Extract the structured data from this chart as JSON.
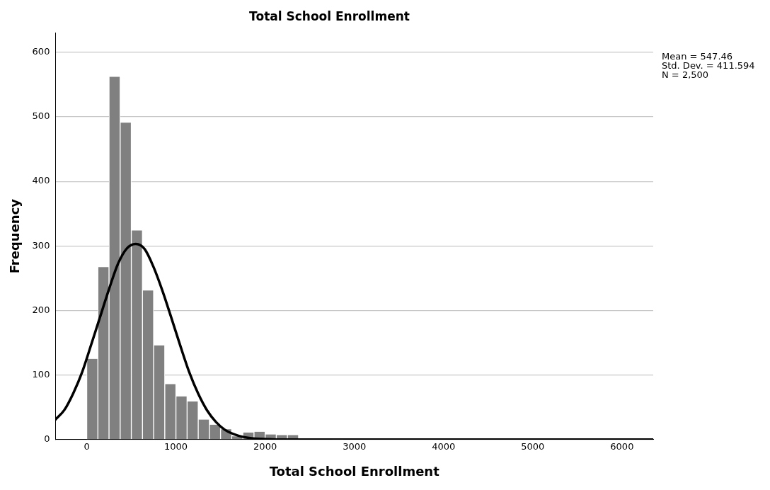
{
  "chart_data": {
    "type": "histogram",
    "title": "Total School Enrollment",
    "xlabel": "Total School Enrollment",
    "ylabel": "Frequency",
    "bins": [
      0,
      125,
      250,
      375,
      500,
      625,
      750,
      875,
      1000,
      1125,
      1250,
      1375,
      1500,
      1625,
      1750,
      1875,
      2000,
      2125,
      2250,
      2375,
      2500,
      2625,
      2750,
      2875
    ],
    "values": [
      125,
      267,
      562,
      491,
      324,
      231,
      146,
      86,
      67,
      59,
      31,
      23,
      16,
      5,
      11,
      12,
      8,
      7,
      7,
      0,
      0,
      0,
      1
    ],
    "color": "#808080",
    "series": [
      {
        "type": "line",
        "color": "#000000",
        "x": [
          -350,
          -250,
          -150,
          -50,
          50,
          150,
          250,
          350,
          450,
          550,
          650,
          750,
          850,
          950,
          1050,
          1150,
          1250,
          1350,
          1450,
          1550,
          1700,
          1850,
          2000,
          2200,
          3000,
          4000,
          5000,
          6000,
          6350
        ],
        "values": [
          31,
          46,
          72,
          105,
          147,
          190,
          233,
          272,
          296,
          303,
          295,
          267,
          230,
          188,
          145,
          104,
          71,
          45,
          27,
          15,
          6,
          2,
          1,
          0,
          0,
          0,
          0,
          0,
          0
        ]
      }
    ],
    "xlim": [
      -350,
      6350
    ],
    "xticks": [
      0,
      1000,
      2000,
      3000,
      4000,
      5000,
      6000
    ],
    "ylim": [
      0,
      630
    ],
    "yticks": [
      0,
      100,
      200,
      300,
      400,
      500,
      600
    ],
    "grid": "y",
    "legend": false,
    "marker": "none",
    "line_style": "solid",
    "annotations": [
      "Mean = 547.46",
      "Std. Dev. = 411.594",
      "N = 2,500"
    ]
  }
}
